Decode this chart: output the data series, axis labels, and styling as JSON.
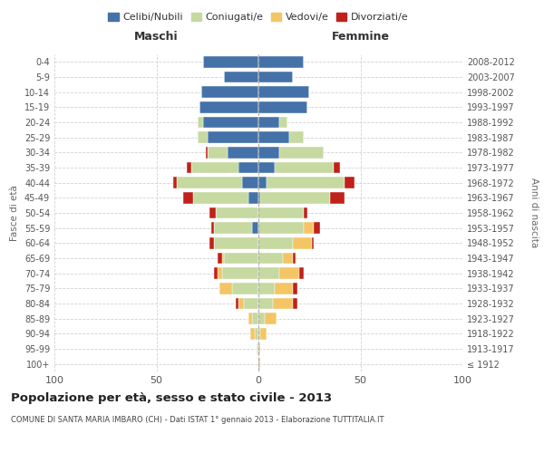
{
  "age_groups": [
    "100+",
    "95-99",
    "90-94",
    "85-89",
    "80-84",
    "75-79",
    "70-74",
    "65-69",
    "60-64",
    "55-59",
    "50-54",
    "45-49",
    "40-44",
    "35-39",
    "30-34",
    "25-29",
    "20-24",
    "15-19",
    "10-14",
    "5-9",
    "0-4"
  ],
  "birth_years": [
    "≤ 1912",
    "1913-1917",
    "1918-1922",
    "1923-1927",
    "1928-1932",
    "1933-1937",
    "1938-1942",
    "1943-1947",
    "1948-1952",
    "1953-1957",
    "1958-1962",
    "1963-1967",
    "1968-1972",
    "1973-1977",
    "1978-1982",
    "1983-1987",
    "1988-1992",
    "1993-1997",
    "1998-2002",
    "2003-2007",
    "2008-2012"
  ],
  "male": {
    "celibi": [
      0,
      0,
      0,
      0,
      0,
      0,
      0,
      0,
      0,
      3,
      0,
      5,
      8,
      10,
      15,
      25,
      27,
      29,
      28,
      17,
      27
    ],
    "coniugati": [
      0,
      1,
      2,
      3,
      7,
      13,
      18,
      17,
      22,
      19,
      21,
      27,
      32,
      23,
      10,
      5,
      3,
      0,
      0,
      0,
      0
    ],
    "vedovi": [
      0,
      0,
      2,
      2,
      3,
      6,
      2,
      1,
      0,
      0,
      0,
      0,
      0,
      0,
      0,
      0,
      0,
      0,
      0,
      0,
      0
    ],
    "divorziati": [
      0,
      0,
      0,
      0,
      1,
      0,
      2,
      2,
      2,
      1,
      3,
      5,
      2,
      2,
      1,
      0,
      0,
      0,
      0,
      0,
      0
    ]
  },
  "female": {
    "celibi": [
      0,
      0,
      0,
      0,
      0,
      0,
      0,
      0,
      0,
      0,
      0,
      1,
      4,
      8,
      10,
      15,
      10,
      24,
      25,
      17,
      22
    ],
    "coniugati": [
      0,
      0,
      1,
      3,
      7,
      8,
      10,
      12,
      17,
      22,
      22,
      34,
      38,
      29,
      22,
      7,
      4,
      0,
      0,
      0,
      0
    ],
    "vedovi": [
      1,
      1,
      3,
      6,
      10,
      9,
      10,
      5,
      9,
      5,
      0,
      0,
      0,
      0,
      0,
      0,
      0,
      0,
      0,
      0,
      0
    ],
    "divorziati": [
      0,
      0,
      0,
      0,
      2,
      2,
      2,
      1,
      1,
      3,
      2,
      7,
      5,
      3,
      0,
      0,
      0,
      0,
      0,
      0,
      0
    ]
  },
  "colors": {
    "celibi": "#4472a8",
    "coniugati": "#c5d9a0",
    "vedovi": "#f4c565",
    "divorziati": "#c0211a"
  },
  "xlim": 100,
  "title": "Popolazione per età, sesso e stato civile - 2013",
  "subtitle": "COMUNE DI SANTA MARIA IMBARO (CH) - Dati ISTAT 1° gennaio 2013 - Elaborazione TUTTITALIA.IT",
  "ylabel": "Fasce di età",
  "ylabel_right": "Anni di nascita",
  "legend_labels": [
    "Celibi/Nubili",
    "Coniugati/e",
    "Vedovi/e",
    "Divorziati/e"
  ],
  "maschi_label": "Maschi",
  "femmine_label": "Femmine",
  "bg_color": "#ffffff",
  "grid_color": "#cccccc"
}
